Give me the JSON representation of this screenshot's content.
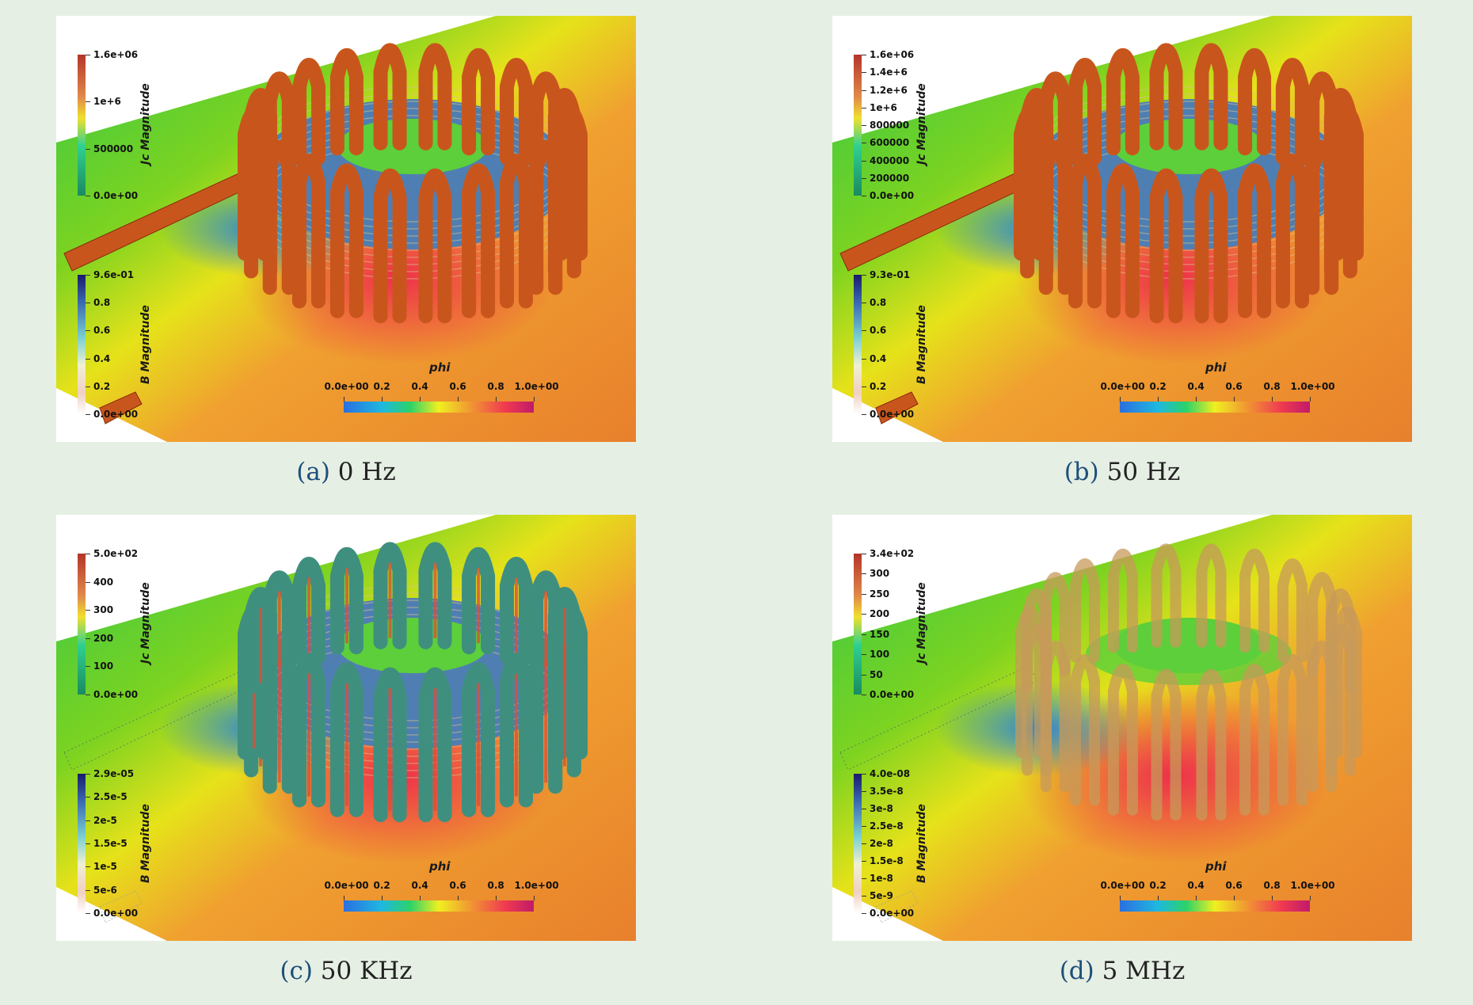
{
  "figure": {
    "panels": [
      {
        "sub_label": "(a)",
        "caption": "0 Hz",
        "variant": "orange",
        "jc_bar": {
          "title": "Jc Magnitude",
          "labels": [
            "1.6e+06",
            "1e+6",
            "500000",
            "0.0e+00"
          ]
        },
        "b_bar": {
          "title": "B Magnitude",
          "labels": [
            "9.6e-01",
            "0.8",
            "0.6",
            "0.4",
            "0.2",
            "0.0e+00"
          ]
        },
        "phi_bar": {
          "title": "phi",
          "labels": [
            "0.0e+00",
            "0.2",
            "0.4",
            "0.6",
            "0.8",
            "1.0e+00"
          ]
        }
      },
      {
        "sub_label": "(b)",
        "caption": "50 Hz",
        "variant": "orange",
        "jc_bar": {
          "title": "Jc Magnitude",
          "labels": [
            "1.6e+06",
            "1.4e+6",
            "1.2e+6",
            "1e+6",
            "800000",
            "600000",
            "400000",
            "200000",
            "0.0e+00"
          ]
        },
        "b_bar": {
          "title": "B Magnitude",
          "labels": [
            "9.3e-01",
            "0.8",
            "0.6",
            "0.4",
            "0.2",
            "0.0e+00"
          ]
        },
        "phi_bar": {
          "title": "phi",
          "labels": [
            "0.0e+00",
            "0.2",
            "0.4",
            "0.6",
            "0.8",
            "1.0e+00"
          ]
        }
      },
      {
        "sub_label": "(c)",
        "caption": "50 KHz",
        "variant": "mixed",
        "jc_bar": {
          "title": "Jc Magnitude",
          "labels": [
            "5.0e+02",
            "400",
            "300",
            "200",
            "100",
            "0.0e+00"
          ]
        },
        "b_bar": {
          "title": "B Magnitude",
          "labels": [
            "2.9e-05",
            "2.5e-5",
            "2e-5",
            "1.5e-5",
            "1e-5",
            "5e-6",
            "0.0e+00"
          ]
        },
        "phi_bar": {
          "title": "phi",
          "labels": [
            "0.0e+00",
            "0.2",
            "0.4",
            "0.6",
            "0.8",
            "1.0e+00"
          ]
        }
      },
      {
        "sub_label": "(d)",
        "caption": "5 MHz",
        "variant": "fuzzy",
        "jc_bar": {
          "title": "Jc Magnitude",
          "labels": [
            "3.4e+02",
            "300",
            "250",
            "200",
            "150",
            "100",
            "50",
            "0.0e+00"
          ]
        },
        "b_bar": {
          "title": "B Magnitude",
          "labels": [
            "4.0e-08",
            "3.5e-8",
            "3e-8",
            "2.5e-8",
            "2e-8",
            "1.5e-8",
            "1e-8",
            "5e-9",
            "0.0e+00"
          ]
        },
        "phi_bar": {
          "title": "phi",
          "labels": [
            "0.0e+00",
            "0.2",
            "0.4",
            "0.6",
            "0.8",
            "1.0e+00"
          ]
        }
      }
    ],
    "colors": {
      "background": "#e6efe4",
      "caption_label": "#1d4f7a",
      "coil_orange": "#c8561c",
      "coil_mixed": "#3f8f7f",
      "coil_fuzzy": "#c79a5a",
      "core_blue": "#4f7fb2"
    }
  }
}
